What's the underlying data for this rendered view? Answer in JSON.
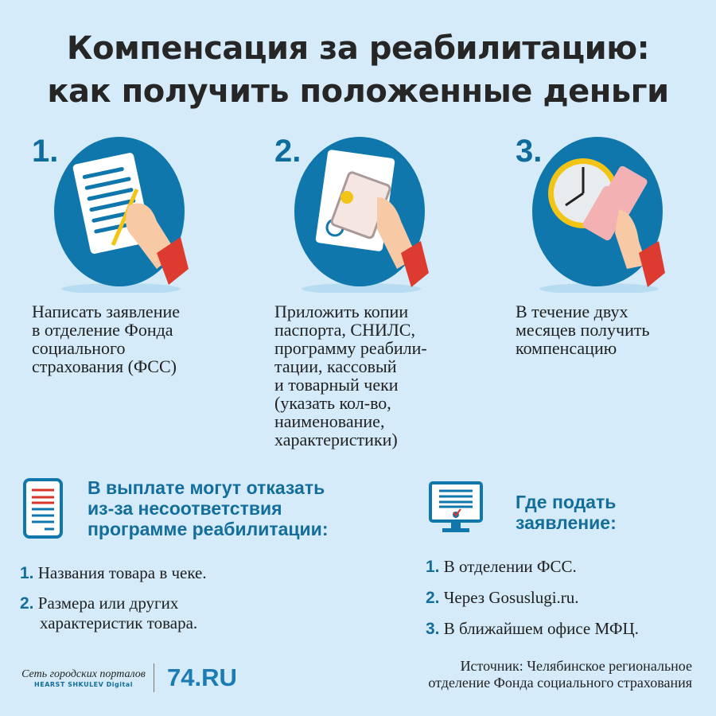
{
  "title": {
    "line1": "Компенсация за реабилитацию:",
    "line2": "как получить положенные деньги"
  },
  "steps": [
    {
      "number": "1.",
      "icon": "hand-writing-document-icon",
      "text": "Написать заявление\nв отделение Фонда\nсоциального\nстрахования (ФСС)"
    },
    {
      "number": "2.",
      "icon": "hand-holding-passport-document-icon",
      "text": "Приложить копии\nпаспорта, СНИЛС,\nпрограмму реабили-\nтации, кассовый\nи товарный чеки\n(указать кол-во,\nнаименование,\nхарактеристики)"
    },
    {
      "number": "3.",
      "icon": "clock-and-money-icon",
      "text": "В течение двух\nмесяцев получить\nкомпенсацию"
    }
  ],
  "refusal": {
    "icon": "document-list-icon",
    "heading": "В выплате могут отказать\nиз-за несоответствия\nпрограмме реабилитации:",
    "items": [
      {
        "n": "1.",
        "text": "Названия товара в чеке."
      },
      {
        "n": "2.",
        "text": "Размера или других\nхарактеристик товара."
      }
    ]
  },
  "where": {
    "icon": "monitor-checkmark-icon",
    "heading": "Где подать\nзаявление:",
    "items": [
      {
        "n": "1.",
        "text": "В отделении ФСС."
      },
      {
        "n": "2.",
        "text": "Через Gosuslugi.ru."
      },
      {
        "n": "3.",
        "text": "В ближайшем офисе МФЦ."
      }
    ]
  },
  "footer": {
    "network_logo": "Сеть городских порталов",
    "network_sub": "HEARST SHKULEV Digital",
    "site_logo": "74.RU",
    "source": "Источник: Челябинское региональное\nотделение Фонда социального страхования"
  },
  "colors": {
    "background": "#d5ebf9",
    "accent": "#0f6d9e",
    "red": "#d9342b"
  }
}
